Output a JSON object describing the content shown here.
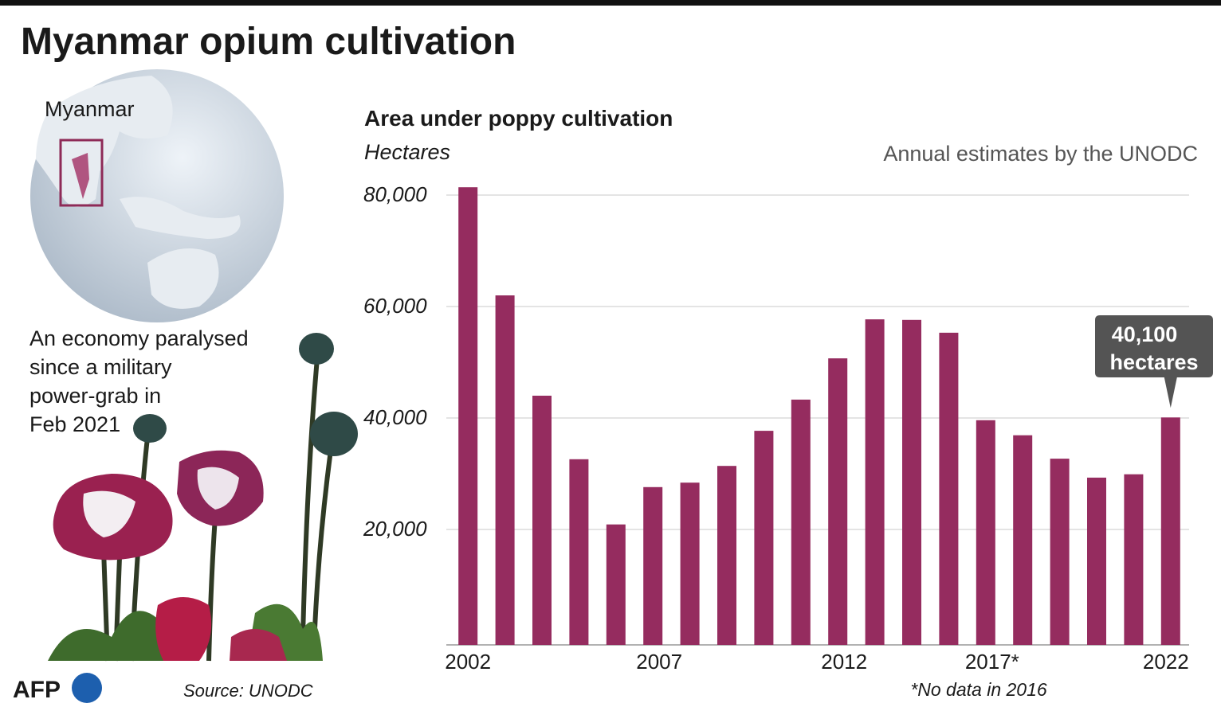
{
  "title": "Myanmar opium cultivation",
  "map_label": "Myanmar",
  "description": [
    "An economy paralysed",
    "since a military",
    "power-grab in",
    "Feb 2021"
  ],
  "source": "Source: UNODC",
  "logo": "AFP",
  "chart_data": {
    "type": "bar",
    "title": "Area under poppy cultivation",
    "y_label": "Hectares",
    "subtitle": "Annual estimates by the UNODC",
    "footnote": "*No data in 2016",
    "categories": [
      "2002",
      null,
      null,
      null,
      null,
      "2007",
      null,
      null,
      null,
      null,
      "2012",
      null,
      null,
      null,
      "2017*",
      null,
      null,
      null,
      null,
      "2022"
    ],
    "values": [
      81400,
      62000,
      44000,
      32600,
      20900,
      27600,
      28400,
      31400,
      37700,
      43300,
      50700,
      57700,
      57600,
      55300,
      39600,
      36900,
      32700,
      29300,
      29900,
      40100
    ],
    "color": "#952c5f",
    "ylim": [
      0,
      82000
    ],
    "yticks": [
      {
        "value": 20000,
        "label": "20,000"
      },
      {
        "value": 40000,
        "label": "40,000"
      },
      {
        "value": 60000,
        "label": "60,000"
      },
      {
        "value": 80000,
        "label": "80,000"
      }
    ],
    "grid": true,
    "annotation": {
      "index": 19,
      "lines": [
        "40,100",
        "hectares"
      ]
    }
  }
}
